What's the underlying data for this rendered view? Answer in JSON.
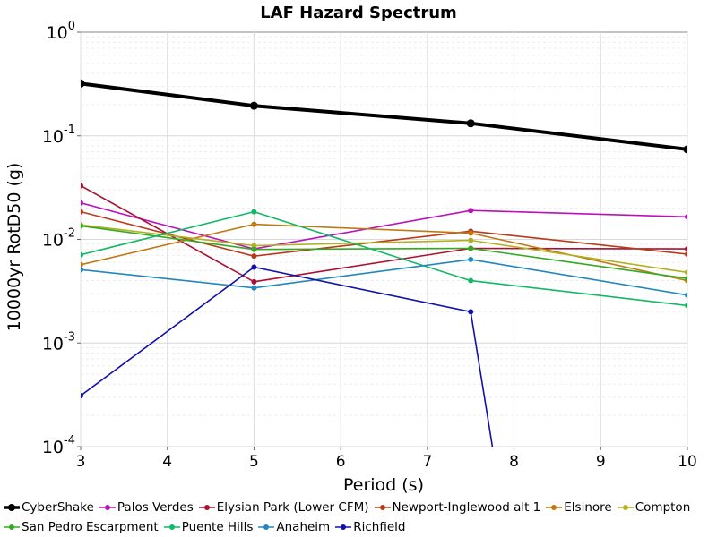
{
  "chart_data": {
    "type": "line",
    "title": "LAF Hazard Spectrum",
    "xlabel": "Period (s)",
    "ylabel": "10000yr RotD50 (g)",
    "xlim": [
      3,
      10
    ],
    "ylim": [
      0.0001,
      1
    ],
    "yscale": "log",
    "x_ticks": [
      "3",
      "4",
      "5",
      "6",
      "7",
      "8",
      "9",
      "10"
    ],
    "y_tick_bases": [
      "10",
      "10",
      "10",
      "10",
      "10"
    ],
    "y_tick_exponents": [
      "-4",
      "-3",
      "-2",
      "-1",
      "0"
    ],
    "grid": true,
    "legend_position": "bottom",
    "x": [
      3,
      5,
      7.5,
      10
    ],
    "series": [
      {
        "name": "CyberShake",
        "color": "#000000",
        "thick": true,
        "values": [
          0.32,
          0.195,
          0.132,
          0.074
        ]
      },
      {
        "name": "Palos Verdes",
        "color": "#bb11bb",
        "values": [
          0.0225,
          0.0081,
          0.019,
          0.0165
        ]
      },
      {
        "name": "Elysian Park (Lower CFM)",
        "color": "#aa1133",
        "values": [
          0.033,
          0.0039,
          0.0082,
          0.0081
        ]
      },
      {
        "name": "Newport-Inglewood alt 1",
        "color": "#b83a1a",
        "values": [
          0.0185,
          0.0069,
          0.012,
          0.0072
        ]
      },
      {
        "name": "Elsinore",
        "color": "#c07810",
        "values": [
          0.0057,
          0.014,
          0.0115,
          0.004
        ]
      },
      {
        "name": "Compton",
        "color": "#b0b020",
        "values": [
          0.0138,
          0.0087,
          0.0098,
          0.0048
        ]
      },
      {
        "name": "San Pedro Escarpment",
        "color": "#33aa22",
        "values": [
          0.0135,
          0.008,
          0.0082,
          0.0042
        ]
      },
      {
        "name": "Puente Hills",
        "color": "#11b866",
        "values": [
          0.0071,
          0.0185,
          0.004,
          0.0023
        ]
      },
      {
        "name": "Anaheim",
        "color": "#2288bb",
        "values": [
          0.0051,
          0.0034,
          0.0064,
          0.0029
        ]
      },
      {
        "name": "Richfield",
        "color": "#1111aa",
        "x": [
          3,
          5,
          7.5,
          7.75
        ],
        "values": [
          0.00031,
          0.0054,
          0.002,
          0.0001
        ]
      }
    ]
  }
}
